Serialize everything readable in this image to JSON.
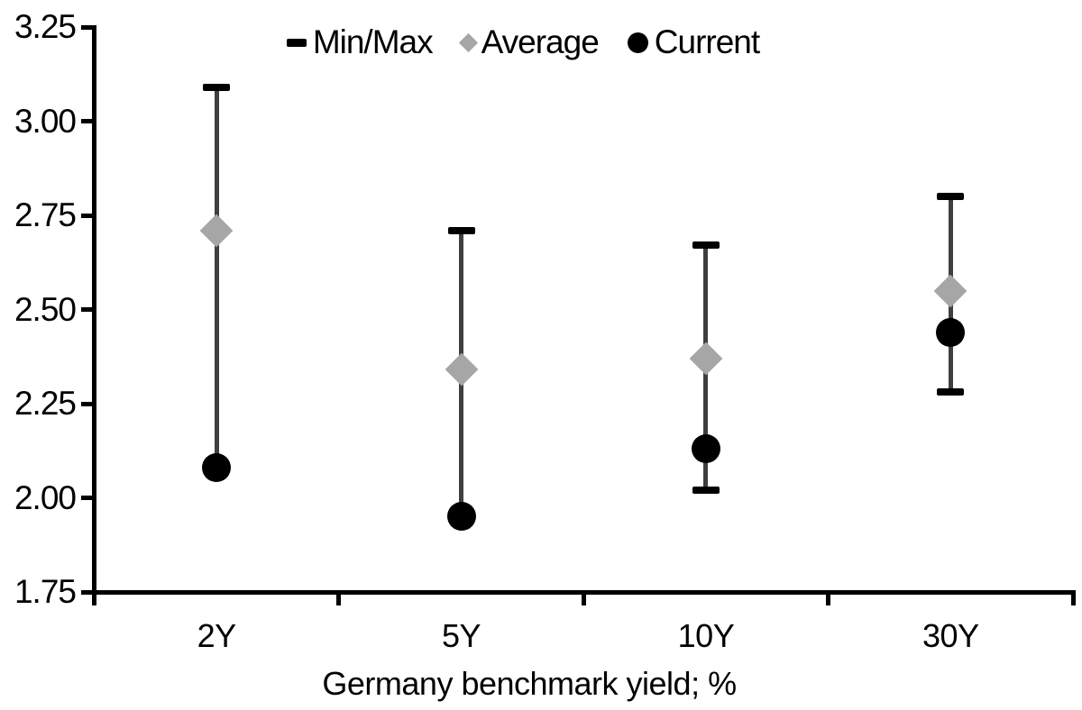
{
  "chart_data": {
    "type": "scatter",
    "subtype": "min-max-range-with-average-and-current",
    "title": "",
    "xlabel": "Germany benchmark yield; %",
    "ylabel": "",
    "categories": [
      "2Y",
      "5Y",
      "10Y",
      "30Y"
    ],
    "series": [
      {
        "name": "Min/Max",
        "marker": "dash",
        "color": "#000000",
        "max": [
          3.09,
          2.71,
          2.67,
          2.8
        ],
        "min": [
          2.08,
          1.95,
          2.02,
          2.28
        ]
      },
      {
        "name": "Average",
        "marker": "diamond",
        "color": "#a6a6a6",
        "values": [
          2.71,
          2.34,
          2.37,
          2.55
        ]
      },
      {
        "name": "Current",
        "marker": "circle",
        "color": "#000000",
        "values": [
          2.08,
          1.95,
          2.13,
          2.44
        ]
      }
    ],
    "ylim": [
      1.75,
      3.25
    ],
    "ytick_step": 0.25,
    "yticks": [
      "3.25",
      "3.00",
      "2.75",
      "2.50",
      "2.25",
      "2.00",
      "1.75"
    ],
    "grid": false,
    "legend_position": "top-center",
    "whisker_color": "#3f3f3f",
    "background_color": "#ffffff",
    "text_color": "#000000"
  }
}
